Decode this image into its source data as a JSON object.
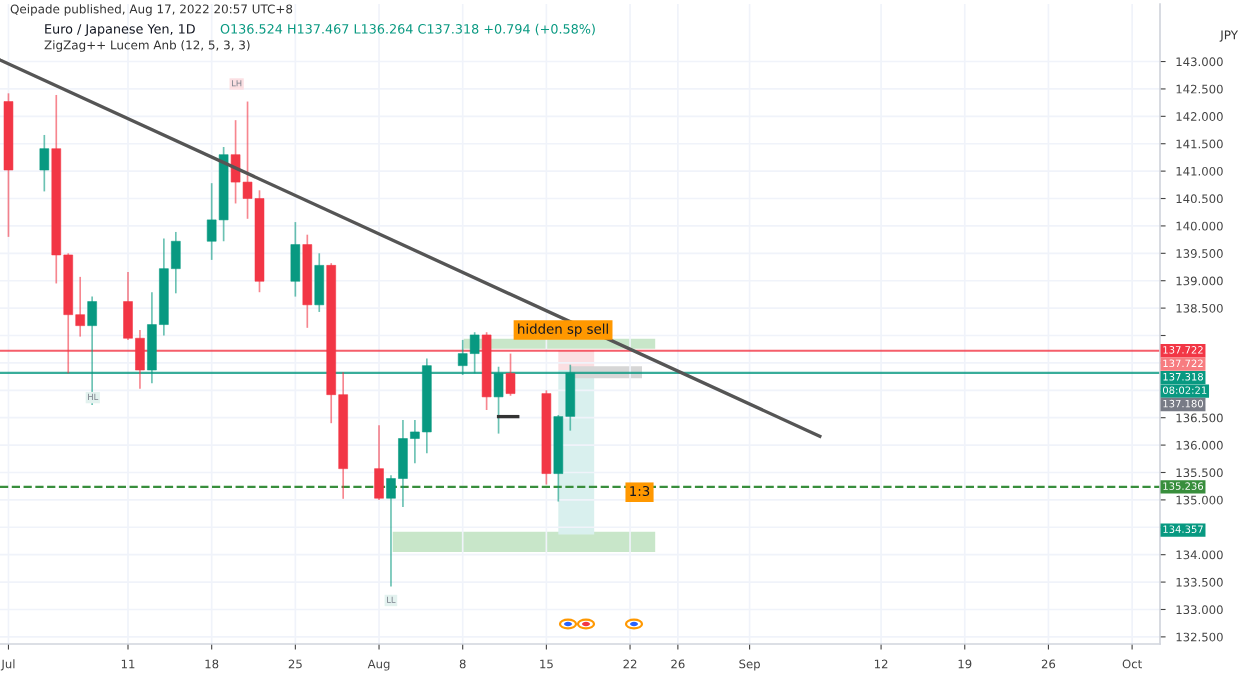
{
  "chart_data": {
    "type": "candlestick",
    "title": "Euro / Japanese Yen, 1D",
    "subtitle": "O136.524 H137.467 L136.264 C137.318 +0.794 (+0.58%)",
    "x": [
      "2022-07-01",
      "2022-07-04",
      "2022-07-05",
      "2022-07-06",
      "2022-07-07",
      "2022-07-08",
      "2022-07-11",
      "2022-07-12",
      "2022-07-13",
      "2022-07-14",
      "2022-07-15",
      "2022-07-18",
      "2022-07-19",
      "2022-07-20",
      "2022-07-21",
      "2022-07-22",
      "2022-07-25",
      "2022-07-26",
      "2022-07-27",
      "2022-07-28",
      "2022-07-29",
      "2022-08-01",
      "2022-08-02",
      "2022-08-03",
      "2022-08-04",
      "2022-08-05",
      "2022-08-08",
      "2022-08-09",
      "2022-08-10",
      "2022-08-11",
      "2022-08-12",
      "2022-08-15",
      "2022-08-16",
      "2022-08-17"
    ],
    "ohlc": [
      [
        142.27,
        142.42,
        139.8,
        141.02
      ],
      [
        141.02,
        141.66,
        140.63,
        141.41
      ],
      [
        141.41,
        142.39,
        138.95,
        139.47
      ],
      [
        139.47,
        139.5,
        137.31,
        138.38
      ],
      [
        138.38,
        139.07,
        137.98,
        138.18
      ],
      [
        138.18,
        138.71,
        136.73,
        138.62
      ],
      [
        138.62,
        139.16,
        137.92,
        137.95
      ],
      [
        137.95,
        138.1,
        137.03,
        137.37
      ],
      [
        137.37,
        138.79,
        137.13,
        138.2
      ],
      [
        138.2,
        139.77,
        138.0,
        139.22
      ],
      [
        139.22,
        139.89,
        138.77,
        139.72
      ],
      [
        139.72,
        140.78,
        139.38,
        140.11
      ],
      [
        140.11,
        141.44,
        139.72,
        141.3
      ],
      [
        141.3,
        141.93,
        140.41,
        140.8
      ],
      [
        140.8,
        142.27,
        140.13,
        140.5
      ],
      [
        140.5,
        140.65,
        138.79,
        138.99
      ],
      [
        138.99,
        140.07,
        138.71,
        139.66
      ],
      [
        139.66,
        139.84,
        138.14,
        138.56
      ],
      [
        138.56,
        139.5,
        138.43,
        139.28
      ],
      [
        139.28,
        139.32,
        136.4,
        136.92
      ],
      [
        136.92,
        137.33,
        135.02,
        135.57
      ],
      [
        135.57,
        136.36,
        135.0,
        135.03
      ],
      [
        135.03,
        135.45,
        133.42,
        135.39
      ],
      [
        135.39,
        136.46,
        134.87,
        136.12
      ],
      [
        136.12,
        136.46,
        135.67,
        136.24
      ],
      [
        136.24,
        137.58,
        135.85,
        137.45
      ],
      [
        137.45,
        137.92,
        137.28,
        137.67
      ],
      [
        137.67,
        138.06,
        137.31,
        138.01
      ],
      [
        138.01,
        138.06,
        136.64,
        136.88
      ],
      [
        136.88,
        137.43,
        136.21,
        137.31
      ],
      [
        137.31,
        137.67,
        136.9,
        136.94
      ],
      [
        136.94,
        137.0,
        135.28,
        135.48
      ],
      [
        135.48,
        136.55,
        134.97,
        136.52
      ],
      [
        136.524,
        137.467,
        136.264,
        137.318
      ]
    ],
    "series": [
      {
        "type": "line",
        "color": "#555555",
        "x": [
          "2022-06-30T07:00",
          "2022-09-06T21:00"
        ],
        "values": [
          143.03,
          136.16
        ]
      },
      {
        "type": "line",
        "color": "#333333",
        "x": [
          "2022-08-11",
          "2022-08-12T14:30"
        ],
        "values": [
          136.52,
          136.52
        ]
      },
      {
        "type": "area",
        "color": "#c8e6c9",
        "x": [
          "2022-08-08T01:30",
          "2022-08-24T02:30"
        ],
        "values": [
          null,
          null
        ],
        "lower": [
          137.76,
          137.76
        ],
        "upper": [
          137.94,
          137.94
        ]
      },
      {
        "type": "area",
        "color": "#c8e6c9",
        "x": [
          "2022-08-02T03:30",
          "2022-08-24T02:30"
        ],
        "values": [
          null,
          null
        ],
        "lower": [
          134.05,
          134.05
        ],
        "upper": [
          134.42,
          134.42
        ]
      },
      {
        "type": "area",
        "color": "#d9f0ee",
        "x": [
          "2022-08-16",
          "2022-08-19"
        ],
        "values": [
          null,
          null
        ],
        "lower": [
          134.37,
          134.37
        ],
        "upper": [
          137.37,
          137.37
        ]
      },
      {
        "type": "area",
        "color": "#fbdfe2",
        "x": [
          "2022-08-16",
          "2022-08-19"
        ],
        "values": [
          null,
          null
        ],
        "lower": [
          137.37,
          137.37
        ],
        "upper": [
          137.73,
          137.73
        ]
      },
      {
        "type": "area",
        "color": "#d6d6d6",
        "x": [
          "2022-08-17",
          "2022-08-23"
        ],
        "values": [
          null,
          null
        ],
        "lower": [
          137.22,
          137.22
        ],
        "upper": [
          137.44,
          137.44
        ]
      }
    ],
    "ref_lines": [
      {
        "axis": "y",
        "value": 137.722,
        "label": "137.722",
        "color": "#f23645",
        "line_style": "solid"
      },
      {
        "axis": "y",
        "value": 137.318,
        "label": "137.318",
        "color": "#089981",
        "line_style": "solid"
      },
      {
        "axis": "y",
        "value": 135.236,
        "label": "135.236",
        "color": "#388e3c",
        "line_style": "dashed"
      }
    ],
    "annotations": [
      "Qeipade published, Aug 17, 2022 20:57 UTC+8",
      "ZigZag++ Lucem Anb (12, 5, 3, 3)",
      "JPY",
      "137.722",
      "08:02:21",
      "137.180",
      "134.357",
      "LH",
      "HL",
      "LL",
      {
        "text": "hidden sp sell",
        "x": "2022-08-16T09:30",
        "y": 138.1
      },
      {
        "text": "1:3",
        "x": "2022-08-22T19:00",
        "y": 135.14
      }
    ],
    "xlim": [
      "2022-06-30T07:00",
      "2022-10-05T08:00"
    ],
    "ylim": [
      132.37,
      144.05
    ],
    "xticks": [
      {
        "value": "2022-07-01",
        "label": "Jul"
      },
      {
        "value": "2022-07-11",
        "label": "11"
      },
      {
        "value": "2022-07-18",
        "label": "18"
      },
      {
        "value": "2022-07-25",
        "label": "25"
      },
      {
        "value": "2022-08-01",
        "label": "Aug"
      },
      {
        "value": "2022-08-08",
        "label": "8"
      },
      {
        "value": "2022-08-15",
        "label": "15"
      },
      {
        "value": "2022-08-22",
        "label": "22"
      },
      {
        "value": "2022-08-26",
        "label": "26"
      },
      {
        "value": "2022-09-01",
        "label": "Sep"
      },
      {
        "value": "2022-09-12",
        "label": "12"
      },
      {
        "value": "2022-09-19",
        "label": "19"
      },
      {
        "value": "2022-09-26",
        "label": "26"
      },
      {
        "value": "2022-10-03",
        "label": "Oct"
      }
    ],
    "yticks": [
      {
        "value": 132.5,
        "label": "132.500"
      },
      {
        "value": 133,
        "label": "133.000"
      },
      {
        "value": 133.5,
        "label": "133.500"
      },
      {
        "value": 134,
        "label": "134.000"
      },
      {
        "value": 134.5,
        "label": null
      },
      {
        "value": 135,
        "label": "135.000"
      },
      {
        "value": 135.5,
        "label": "135.500"
      },
      {
        "value": 136,
        "label": "136.000"
      },
      {
        "value": 136.5,
        "label": "136.500"
      },
      {
        "value": 137,
        "label": null
      },
      {
        "value": 137.5,
        "label": null
      },
      {
        "value": 138,
        "label": null
      },
      {
        "value": 138.5,
        "label": "138.500"
      },
      {
        "value": 139,
        "label": "139.000"
      },
      {
        "value": 139.5,
        "label": "139.500"
      },
      {
        "value": 140,
        "label": "140.000"
      },
      {
        "value": 140.5,
        "label": "140.500"
      },
      {
        "value": 141,
        "label": "141.000"
      },
      {
        "value": 141.5,
        "label": "141.500"
      },
      {
        "value": 142,
        "label": "142.000"
      },
      {
        "value": 142.5,
        "label": "142.500"
      },
      {
        "value": 143,
        "label": "143.000"
      }
    ],
    "grid": true
  }
}
